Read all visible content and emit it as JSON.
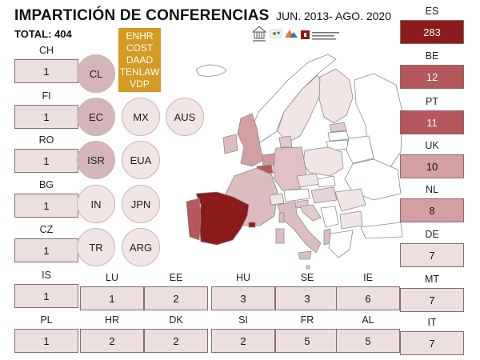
{
  "header": {
    "title": "IMPARTICIÓN DE CONFERENCIAS",
    "period": "JUN. 2013- AGO. 2020",
    "total": "TOTAL: 404"
  },
  "organizations": [
    "ENHR",
    "COST",
    "DAAD",
    "TENLAW",
    "VDP"
  ],
  "colors": {
    "very_high": "#8b1a1a",
    "high": "#b5575b",
    "mid": "#d49fa2",
    "low": "#ecdfe0",
    "circle_dark": "#d4b6b8",
    "circle_light": "#f1e5e6",
    "organizations_bg": "#d49a23"
  },
  "countries": [
    {
      "code": "ES",
      "value": "283",
      "level": "very_high"
    },
    {
      "code": "BE",
      "value": "12",
      "level": "high"
    },
    {
      "code": "PT",
      "value": "11",
      "level": "high"
    },
    {
      "code": "UK",
      "value": "10",
      "level": "mid"
    },
    {
      "code": "NL",
      "value": "8",
      "level": "mid"
    },
    {
      "code": "DE",
      "value": "7",
      "level": "low"
    },
    {
      "code": "MT",
      "value": "7",
      "level": "low"
    },
    {
      "code": "IT",
      "value": "7",
      "level": "low"
    },
    {
      "code": "IE",
      "value": "6",
      "level": "low"
    },
    {
      "code": "FR",
      "value": "5",
      "level": "low"
    },
    {
      "code": "AL",
      "value": "5",
      "level": "low"
    },
    {
      "code": "HU",
      "value": "3",
      "level": "low"
    },
    {
      "code": "SE",
      "value": "3",
      "level": "low"
    },
    {
      "code": "EE",
      "value": "2",
      "level": "low"
    },
    {
      "code": "DK",
      "value": "2",
      "level": "low"
    },
    {
      "code": "SI",
      "value": "2",
      "level": "low"
    },
    {
      "code": "HR",
      "value": "2",
      "level": "low"
    },
    {
      "code": "LU",
      "value": "1",
      "level": "low"
    },
    {
      "code": "CH",
      "value": "1",
      "level": "low"
    },
    {
      "code": "FI",
      "value": "1",
      "level": "low"
    },
    {
      "code": "RO",
      "value": "1",
      "level": "low"
    },
    {
      "code": "BG",
      "value": "1",
      "level": "low"
    },
    {
      "code": "CZ",
      "value": "1",
      "level": "low"
    },
    {
      "code": "IS",
      "value": "1",
      "level": "low"
    },
    {
      "code": "PL",
      "value": "1",
      "level": "low"
    }
  ],
  "other_countries": [
    {
      "label": "CL",
      "tone": "circle_dark"
    },
    {
      "label": "EC",
      "tone": "circle_dark"
    },
    {
      "label": "MX",
      "tone": "circle_light"
    },
    {
      "label": "AUS",
      "tone": "circle_light"
    },
    {
      "label": "ISR",
      "tone": "circle_dark"
    },
    {
      "label": "EUA",
      "tone": "circle_light"
    },
    {
      "label": "IN",
      "tone": "circle_light"
    },
    {
      "label": "JPN",
      "tone": "circle_light"
    },
    {
      "label": "TR",
      "tone": "circle_light"
    },
    {
      "label": "ARG",
      "tone": "circle_light"
    }
  ]
}
